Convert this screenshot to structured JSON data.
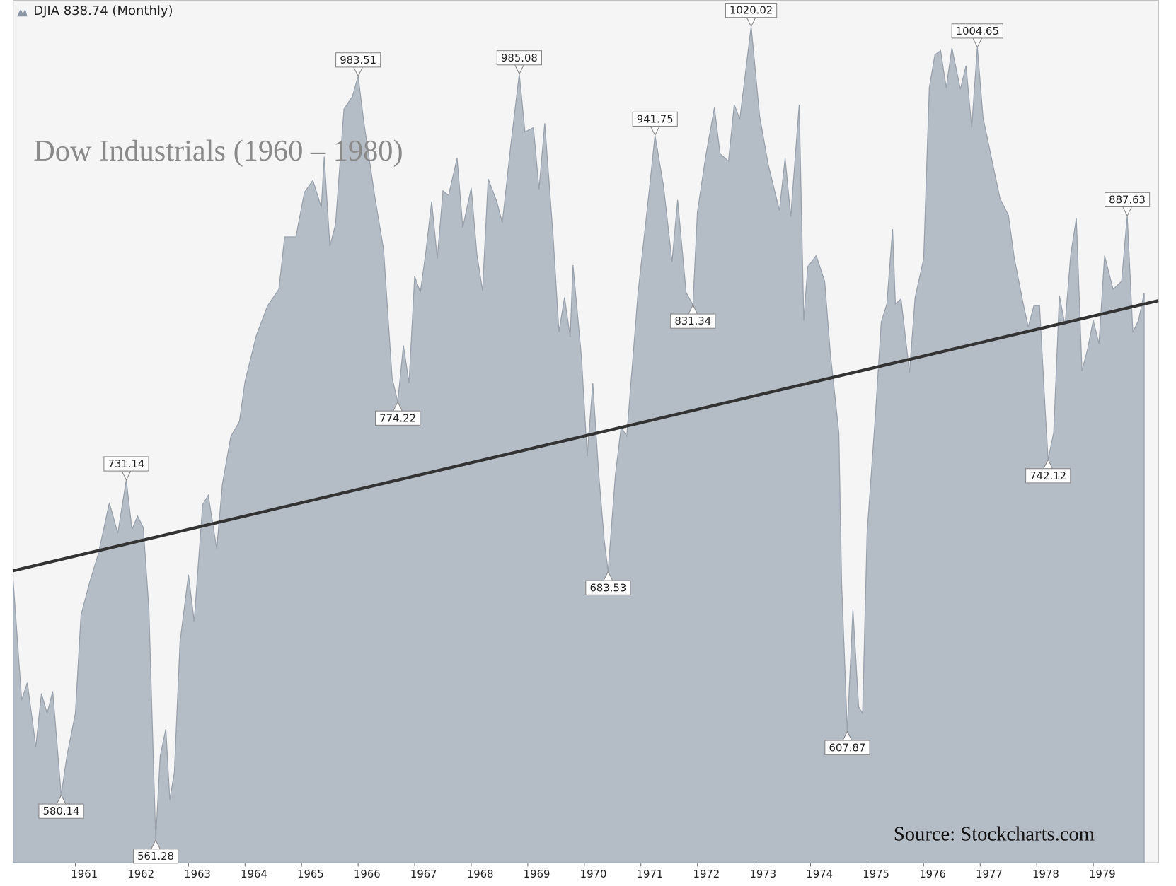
{
  "chart_data": {
    "type": "area",
    "legend_title": "DJIA 838.74 (Monthly)",
    "title": "Dow Industrials  (1960 – 1980)",
    "source": "Source: Stockcharts.com",
    "log_scale": true,
    "xlim": [
      1959.9,
      1980.15
    ],
    "ylim": [
      552,
      1040
    ],
    "xticks": [
      1961,
      1962,
      1963,
      1964,
      1965,
      1966,
      1967,
      1968,
      1969,
      1970,
      1971,
      1972,
      1973,
      1974,
      1975,
      1976,
      1977,
      1978,
      1979
    ],
    "series": [
      {
        "name": "DJIA",
        "color": "#b4bcc6",
        "x": [
          1959.9,
          1960.05,
          1960.15,
          1960.3,
          1960.4,
          1960.5,
          1960.6,
          1960.75,
          1960.85,
          1961.0,
          1961.1,
          1961.25,
          1961.4,
          1961.5,
          1961.6,
          1961.75,
          1961.9,
          1962.0,
          1962.1,
          1962.2,
          1962.3,
          1962.42,
          1962.5,
          1962.6,
          1962.67,
          1962.75,
          1962.85,
          1963.0,
          1963.1,
          1963.25,
          1963.35,
          1963.5,
          1963.6,
          1963.75,
          1963.9,
          1964.0,
          1964.2,
          1964.4,
          1964.6,
          1964.7,
          1964.9,
          1965.05,
          1965.2,
          1965.35,
          1965.4,
          1965.5,
          1965.6,
          1965.75,
          1965.9,
          1966.0,
          1966.1,
          1966.3,
          1966.45,
          1966.6,
          1966.7,
          1966.8,
          1966.9,
          1967.0,
          1967.1,
          1967.2,
          1967.3,
          1967.4,
          1967.5,
          1967.6,
          1967.75,
          1967.85,
          1968.0,
          1968.1,
          1968.2,
          1968.3,
          1968.45,
          1968.55,
          1968.7,
          1968.85,
          1968.95,
          1969.1,
          1969.2,
          1969.3,
          1969.45,
          1969.55,
          1969.65,
          1969.75,
          1969.8,
          1969.95,
          1970.05,
          1970.15,
          1970.25,
          1970.35,
          1970.42,
          1970.55,
          1970.65,
          1970.75,
          1970.95,
          1971.15,
          1971.25,
          1971.4,
          1971.55,
          1971.65,
          1971.8,
          1971.92,
          1972.0,
          1972.15,
          1972.3,
          1972.4,
          1972.55,
          1972.65,
          1972.75,
          1972.95,
          1973.1,
          1973.25,
          1973.45,
          1973.55,
          1973.65,
          1973.8,
          1973.88,
          1973.95,
          1974.1,
          1974.25,
          1974.35,
          1974.5,
          1974.55,
          1974.65,
          1974.75,
          1974.85,
          1974.92,
          1975.0,
          1975.15,
          1975.25,
          1975.35,
          1975.45,
          1975.5,
          1975.6,
          1975.75,
          1975.85,
          1976.0,
          1976.1,
          1976.2,
          1976.3,
          1976.4,
          1976.5,
          1976.65,
          1976.75,
          1976.85,
          1976.95,
          1977.05,
          1977.2,
          1977.35,
          1977.5,
          1977.6,
          1977.75,
          1977.85,
          1977.95,
          1978.05,
          1978.15,
          1978.2,
          1978.3,
          1978.4,
          1978.5,
          1978.6,
          1978.7,
          1978.8,
          1978.9,
          1979.0,
          1979.1,
          1979.2,
          1979.35,
          1979.5,
          1979.6,
          1979.7,
          1979.8,
          1979.9
        ],
        "values": [
          679,
          622,
          630,
          601,
          625,
          616,
          626,
          580.14,
          597,
          616,
          662,
          678,
          692,
          705,
          719,
          703,
          731.14,
          705,
          712,
          706,
          665,
          561.28,
          597,
          609,
          578,
          590,
          649,
          682,
          659,
          718,
          723,
          695,
          729,
          755,
          763,
          786,
          813,
          831,
          841,
          874,
          874,
          903,
          911,
          893,
          927,
          868,
          882,
          960,
          969,
          983.51,
          951,
          899,
          866,
          788,
          774.22,
          807,
          785,
          849,
          839,
          865,
          897,
          860,
          904,
          901,
          926,
          880,
          906,
          863,
          840,
          912,
          897,
          883,
          935,
          985.08,
          944,
          947,
          905,
          950,
          873,
          815,
          836,
          812,
          856,
          800,
          744,
          785,
          736,
          700,
          683.53,
          734,
          760,
          755,
          839,
          905,
          941.75,
          907,
          858,
          898,
          839,
          831.34,
          890,
          928,
          961,
          929,
          924,
          963,
          953,
          1020.02,
          955,
          922,
          891,
          926,
          887,
          963,
          822,
          855,
          862,
          846,
          802,
          757,
          678,
          607.87,
          665,
          619,
          616,
          703,
          768,
          821,
          832,
          879,
          832,
          835,
          791,
          836,
          860,
          975,
          999,
          1002,
          975,
          1004,
          974,
          991,
          947,
          1004.65,
          954,
          926,
          899,
          888,
          861,
          834,
          818,
          831,
          831,
          769,
          742.12,
          757,
          837,
          819,
          862,
          886,
          792,
          805,
          822,
          808,
          862,
          841,
          846,
          887.63,
          815,
          822,
          838.74
        ]
      }
    ],
    "trendline": {
      "color": "#333333",
      "x": [
        1959.9,
        1980.15
      ],
      "values": [
        684,
        834
      ]
    },
    "annotations": [
      {
        "x": 1960.75,
        "value": 580.14
      },
      {
        "x": 1961.9,
        "value": 731.14
      },
      {
        "x": 1962.42,
        "value": 561.28
      },
      {
        "x": 1966.0,
        "value": 983.51
      },
      {
        "x": 1966.7,
        "value": 774.22
      },
      {
        "x": 1968.85,
        "value": 985.08
      },
      {
        "x": 1970.42,
        "value": 683.53
      },
      {
        "x": 1971.25,
        "value": 941.75
      },
      {
        "x": 1971.92,
        "value": 831.34
      },
      {
        "x": 1972.95,
        "value": 1020.02
      },
      {
        "x": 1974.65,
        "value": 607.87
      },
      {
        "x": 1976.95,
        "value": 1004.65
      },
      {
        "x": 1978.2,
        "value": 742.12
      },
      {
        "x": 1979.6,
        "value": 887.63
      }
    ]
  }
}
